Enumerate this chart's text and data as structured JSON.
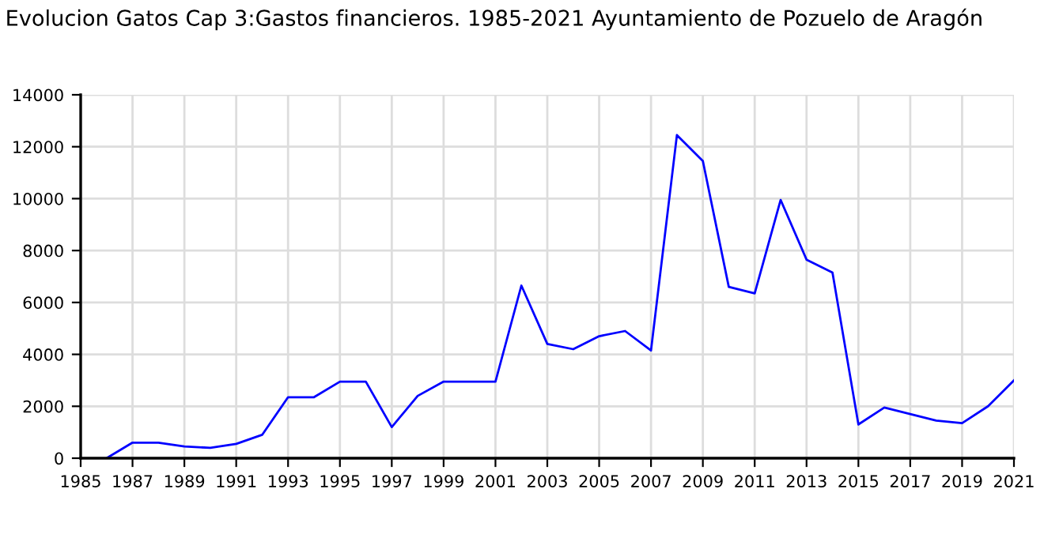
{
  "chart_data": {
    "type": "line",
    "title": "Evolucion Gatos Cap 3:Gastos financieros. 1985-2021 Ayuntamiento de Pozuelo de Aragón",
    "x": [
      1986,
      1987,
      1988,
      1989,
      1990,
      1991,
      1992,
      1993,
      1994,
      1995,
      1996,
      1997,
      1998,
      1999,
      2000,
      2001,
      2002,
      2003,
      2004,
      2005,
      2006,
      2007,
      2008,
      2009,
      2010,
      2011,
      2012,
      2013,
      2014,
      2015,
      2016,
      2017,
      2018,
      2019,
      2020,
      2021
    ],
    "series": [
      {
        "color": "#0000ff",
        "values": [
          0,
          600,
          600,
          450,
          400,
          550,
          900,
          2350,
          2350,
          2950,
          2950,
          1200,
          2400,
          2950,
          2950,
          2950,
          6650,
          4400,
          4200,
          4700,
          4900,
          4150,
          12450,
          11450,
          6600,
          6350,
          9950,
          7650,
          7150,
          1300,
          1950,
          1700,
          1450,
          1350,
          2000,
          3000
        ]
      }
    ],
    "xlim": [
      1985,
      2021
    ],
    "xticks": [
      1985,
      1987,
      1989,
      1991,
      1993,
      1995,
      1997,
      1999,
      2001,
      2003,
      2005,
      2007,
      2009,
      2011,
      2013,
      2015,
      2017,
      2019,
      2021
    ],
    "ylim": [
      0,
      14000
    ],
    "yticks": [
      0,
      2000,
      4000,
      6000,
      8000,
      10000,
      12000,
      14000
    ],
    "grid": true,
    "marker": "none",
    "line_style": "solid",
    "legend": false
  }
}
